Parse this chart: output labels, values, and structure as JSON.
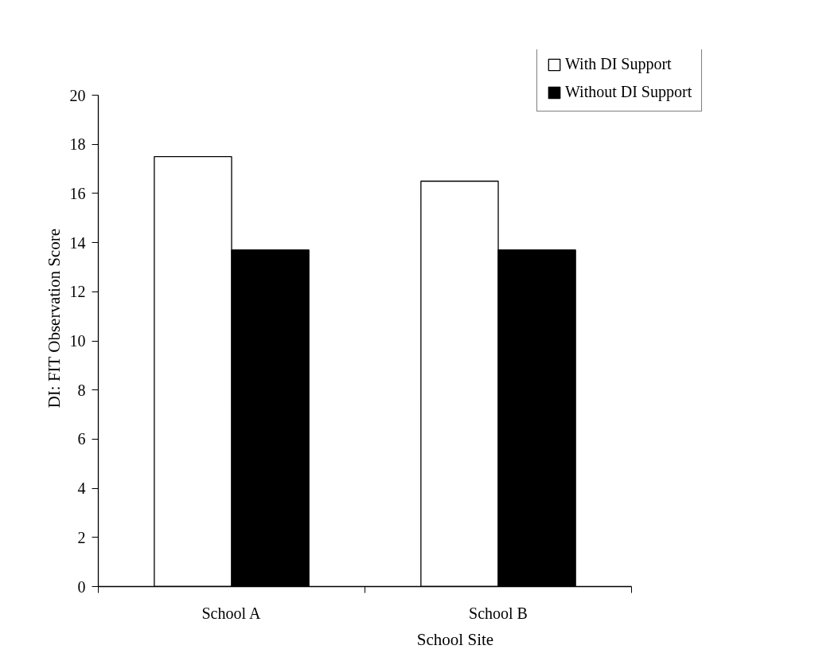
{
  "chart_data": {
    "type": "bar",
    "xlabel": "School Site",
    "ylabel": "DI: FIT Observation Score",
    "categories": [
      "School A",
      "School B"
    ],
    "series": [
      {
        "name": "With DI Support",
        "color": "#ffffff",
        "values": [
          17.5,
          16.5
        ]
      },
      {
        "name": "Without DI Support",
        "color": "#000000",
        "values": [
          13.7,
          13.7
        ]
      }
    ],
    "ylim": [
      0,
      20
    ],
    "yticks": [
      0,
      2,
      4,
      6,
      8,
      10,
      12,
      14,
      16,
      18,
      20
    ],
    "grid": false,
    "legend": "top right"
  }
}
